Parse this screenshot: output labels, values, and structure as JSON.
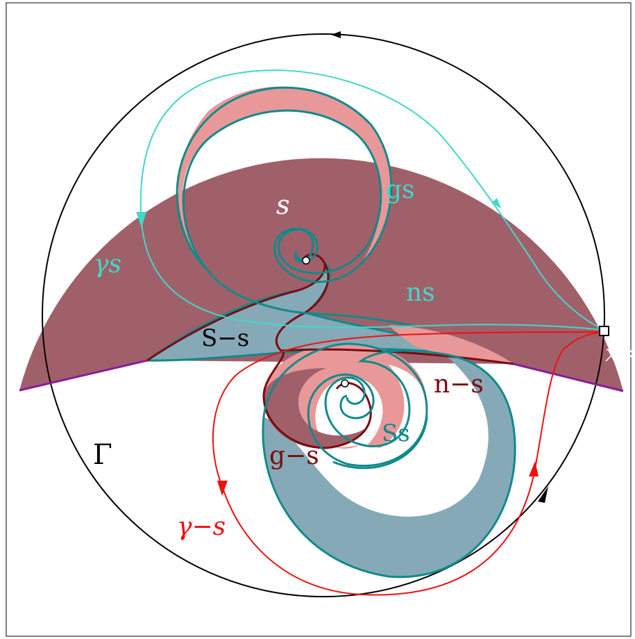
{
  "labels": {
    "s": "s",
    "gamma_s": "γs",
    "g_s": "gs",
    "n_s": "ns",
    "S_minus_s": "S−s",
    "x_star": "x∗",
    "n_minus_s": "n−s",
    "S_s": "Ss",
    "g_minus_s": "g−s",
    "Gamma": "Γ",
    "gamma_minus_s": "γ−s"
  },
  "colors": {
    "dark_region": "#a0606a",
    "light_region": "#e89898",
    "blue_region": "#86a9b7",
    "teal": "#0e8a8a",
    "cyan": "#40d8c8",
    "dark_red": "#7a0a10",
    "red": "#ee1010",
    "purple": "#8a1b9a",
    "black": "#000000"
  }
}
